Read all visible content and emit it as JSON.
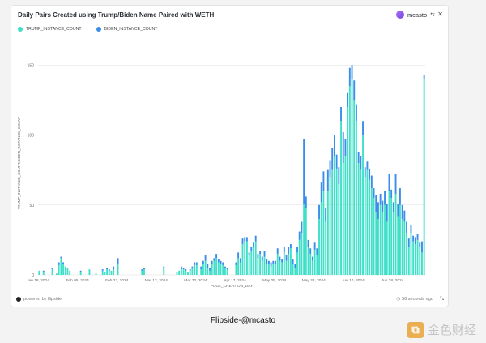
{
  "header": {
    "title": "Daily Pairs Created using Trump/Biden Name Paired with WETH",
    "user": "mcasto",
    "swap_icon": "swap-icon",
    "close": "✕"
  },
  "footer": {
    "powered": "powered by flipside",
    "updated": "58 seconds ago"
  },
  "caption": "Flipside-@mcasto",
  "watermark": "金色财经",
  "colors": {
    "trump": "#40e0c8",
    "biden": "#3a8de8",
    "grid": "#dddddd"
  },
  "chart_data": {
    "type": "bar",
    "stacked": true,
    "xlabel": "POOL_CREATION_DAY",
    "ylabel": "TRUMP_INSTANCE_COUNT,BIDEN_INSTANCE_COUNT",
    "ylim": [
      0,
      160
    ],
    "yticks": [
      0,
      50,
      100,
      150
    ],
    "xtick_labels": [
      "Jan 18, 2024",
      "Feb 05, 2024",
      "Feb 23, 2024",
      "Mar 12, 2024",
      "Mar 30, 2024",
      "Apr 17, 2024",
      "May 05, 2024",
      "May 23, 2024",
      "Jun 10, 2024",
      "Jun 28, 2024"
    ],
    "x_start": "2024-01-18",
    "x_end": "2024-07-13",
    "grid": true,
    "legend_position": "top-left",
    "series": [
      {
        "name": "TRUMP_INSTANCE_COUNT",
        "color": "#40e0c8",
        "values": [
          3,
          0,
          2,
          0,
          0,
          0,
          4,
          0,
          1,
          7,
          12,
          8,
          6,
          5,
          3,
          0,
          0,
          0,
          0,
          2,
          0,
          0,
          0,
          4,
          0,
          0,
          1,
          0,
          0,
          3,
          2,
          4,
          3,
          3,
          4,
          0,
          8,
          0,
          0,
          0,
          0,
          0,
          0,
          0,
          0,
          0,
          0,
          3,
          4,
          0,
          0,
          0,
          0,
          0,
          0,
          0,
          0,
          5,
          0,
          0,
          0,
          0,
          0,
          2,
          3,
          4,
          4,
          3,
          2,
          3,
          5,
          7,
          7,
          0,
          4,
          8,
          10,
          5,
          3,
          8,
          10,
          12,
          9,
          8,
          7,
          5,
          4,
          0,
          0,
          0,
          7,
          12,
          9,
          22,
          24,
          24,
          14,
          17,
          20,
          24,
          12,
          15,
          10,
          13,
          8,
          8,
          6,
          8,
          8,
          15,
          10,
          9,
          16,
          10,
          15,
          19,
          8,
          5,
          16,
          25,
          30,
          51,
          48,
          20,
          15,
          10,
          18,
          14,
          40,
          52,
          60,
          38,
          60,
          70,
          75,
          85,
          76,
          65,
          110,
          80,
          85,
          120,
          135,
          140,
          125,
          110,
          80,
          75,
          100,
          70,
          75,
          68,
          62,
          55,
          45,
          40,
          50,
          45,
          50,
          38,
          60,
          55,
          45,
          58,
          42,
          50,
          40,
          38,
          30,
          20,
          30,
          24,
          22,
          25,
          20,
          16,
          140
        ]
      },
      {
        "name": "BIDEN_INSTANCE_COUNT",
        "color": "#3a8de8",
        "values": [
          0,
          0,
          1,
          0,
          0,
          0,
          1,
          0,
          0,
          2,
          1,
          1,
          0,
          0,
          0,
          0,
          0,
          0,
          0,
          1,
          0,
          0,
          0,
          0,
          0,
          0,
          0,
          0,
          0,
          1,
          0,
          1,
          1,
          0,
          2,
          0,
          4,
          0,
          0,
          0,
          0,
          0,
          0,
          0,
          0,
          0,
          0,
          1,
          1,
          0,
          0,
          0,
          0,
          0,
          0,
          0,
          0,
          1,
          0,
          0,
          0,
          0,
          0,
          0,
          0,
          2,
          1,
          1,
          0,
          1,
          1,
          2,
          2,
          0,
          2,
          2,
          4,
          3,
          2,
          2,
          2,
          3,
          2,
          2,
          2,
          1,
          1,
          0,
          0,
          0,
          2,
          4,
          3,
          4,
          3,
          3,
          2,
          3,
          3,
          4,
          3,
          2,
          3,
          4,
          3,
          2,
          3,
          2,
          2,
          4,
          3,
          2,
          4,
          4,
          5,
          3,
          3,
          3,
          4,
          6,
          8,
          46,
          8,
          5,
          4,
          3,
          5,
          5,
          10,
          14,
          14,
          10,
          15,
          12,
          16,
          15,
          10,
          12,
          10,
          22,
          12,
          10,
          13,
          10,
          14,
          12,
          8,
          10,
          10,
          7,
          6,
          8,
          9,
          7,
          12,
          12,
          8,
          8,
          10,
          13,
          12,
          6,
          7,
          14,
          9,
          12,
          10,
          8,
          8,
          6,
          6,
          4,
          5,
          4,
          3,
          8,
          3
        ]
      }
    ]
  }
}
